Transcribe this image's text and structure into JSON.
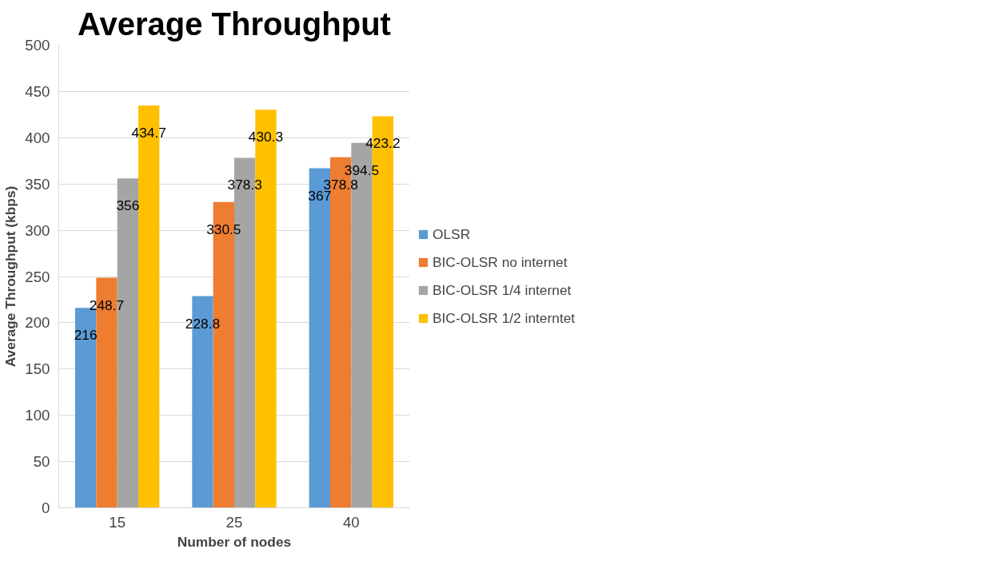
{
  "chart_data": {
    "type": "bar",
    "title": "Average Throughput",
    "xlabel": "Number of nodes",
    "ylabel": "Average Throughput (kbps)",
    "categories": [
      "15",
      "25",
      "40"
    ],
    "series": [
      {
        "name": "OLSR",
        "color": "#5b9bd5",
        "values": [
          216,
          228.8,
          367
        ]
      },
      {
        "name": "BIC-OLSR no internet",
        "color": "#ed7d31",
        "values": [
          248.7,
          330.5,
          378.8
        ]
      },
      {
        "name": "BIC-OLSR 1/4 internet",
        "color": "#a5a5a5",
        "values": [
          356,
          378.3,
          394.5
        ]
      },
      {
        "name": "BIC-OLSR 1/2 interntet",
        "color": "#ffc000",
        "values": [
          434.7,
          430.3,
          423.2
        ]
      }
    ],
    "ylim": [
      0,
      500
    ],
    "yticks": [
      0,
      50,
      100,
      150,
      200,
      250,
      300,
      350,
      400,
      450,
      500
    ],
    "grid": "y",
    "legend": "right",
    "data_labels": true
  }
}
